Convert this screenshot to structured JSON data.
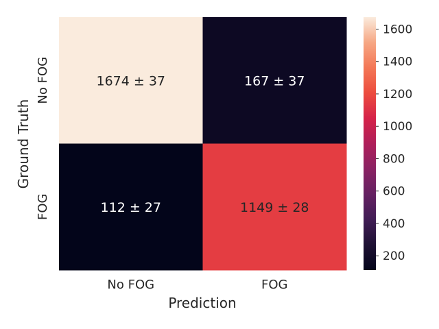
{
  "chart_data": {
    "type": "heatmap",
    "xlabel": "Prediction",
    "ylabel": "Ground Truth",
    "x_categories": [
      "No FOG",
      "FOG"
    ],
    "y_categories": [
      "No FOG",
      "FOG"
    ],
    "cells": [
      [
        {
          "value": 1674,
          "label": "1674 ± 37"
        },
        {
          "value": 167,
          "label": "167 ± 37"
        }
      ],
      [
        {
          "value": 112,
          "label": "112 ± 27"
        },
        {
          "value": 1149,
          "label": "1149 ± 28"
        }
      ]
    ],
    "colorbar": {
      "colormap": "rocket",
      "vmin": 112,
      "vmax": 1674,
      "ticks": [
        200,
        400,
        600,
        800,
        1000,
        1200,
        1400,
        1600
      ],
      "tick_labels": [
        "200",
        "400",
        "600",
        "800",
        "1000",
        "1200",
        "1400",
        "1600"
      ]
    },
    "grid": false
  }
}
